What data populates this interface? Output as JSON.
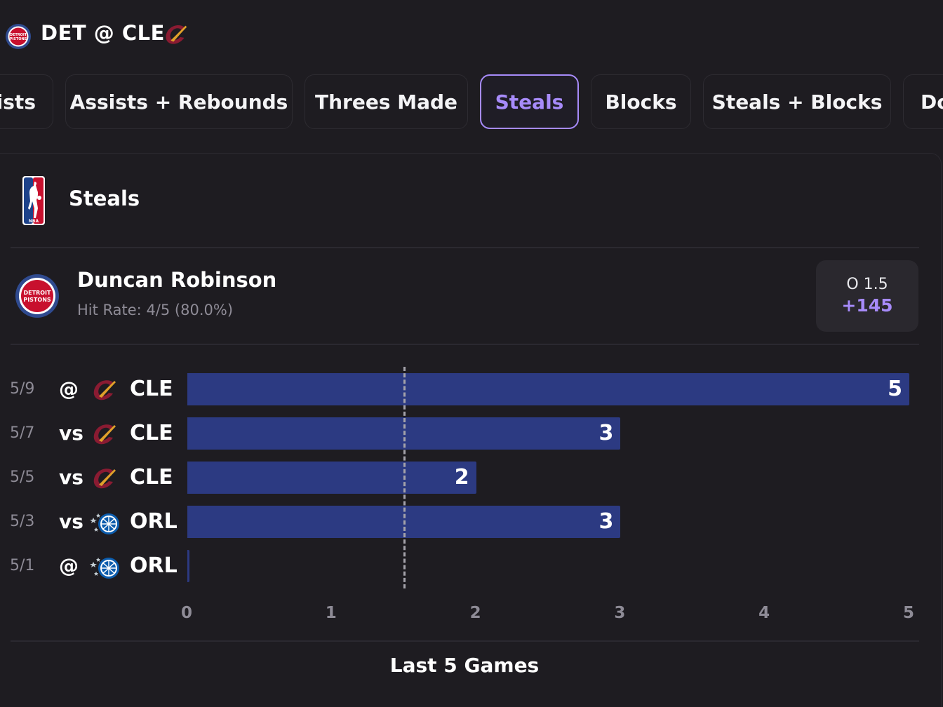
{
  "header": {
    "title": "DET @ CLE"
  },
  "tabs": [
    {
      "label": "ists"
    },
    {
      "label": "Assists + Rebounds"
    },
    {
      "label": "Threes Made"
    },
    {
      "label": "Steals"
    },
    {
      "label": "Blocks"
    },
    {
      "label": "Steals + Blocks"
    },
    {
      "label": "Do"
    }
  ],
  "active_tab": "Steals",
  "panel": {
    "title": "Steals",
    "player": {
      "name": "Duncan Robinson",
      "hit_rate": "Hit Rate: 4/5 (80.0%)",
      "line": "O 1.5",
      "odds": "+145"
    },
    "footer": "Last 5 Games"
  },
  "colors": {
    "accent": "#a78bfa",
    "bar": "#2c3a82",
    "background": "#1e1c21",
    "muted_text": "#8e8b96"
  },
  "icons": {
    "header_left": "detroit-pistons-logo",
    "header_right": "cleveland-cavaliers-logo",
    "league": "nba-logo",
    "player_team": "detroit-pistons-logo"
  },
  "chart_data": {
    "type": "bar",
    "orientation": "horizontal",
    "categories": [
      "5/9",
      "5/7",
      "5/5",
      "5/3",
      "5/1"
    ],
    "rows": [
      {
        "date": "5/9",
        "location": "@",
        "opponent": "CLE",
        "opponent_logo": "cleveland-cavaliers-logo",
        "value": 5
      },
      {
        "date": "5/7",
        "location": "vs",
        "opponent": "CLE",
        "opponent_logo": "cleveland-cavaliers-logo",
        "value": 3
      },
      {
        "date": "5/5",
        "location": "vs",
        "opponent": "CLE",
        "opponent_logo": "cleveland-cavaliers-logo",
        "value": 2
      },
      {
        "date": "5/3",
        "location": "vs",
        "opponent": "ORL",
        "opponent_logo": "orlando-magic-logo",
        "value": 3
      },
      {
        "date": "5/1",
        "location": "@",
        "opponent": "ORL",
        "opponent_logo": "orlando-magic-logo",
        "value": 0
      }
    ],
    "values": [
      5,
      3,
      2,
      3,
      0
    ],
    "xlim": [
      0,
      5
    ],
    "xticks": [
      "0",
      "1",
      "2",
      "3",
      "4",
      "5"
    ],
    "threshold": 1.5,
    "title": "Last 5 Games"
  }
}
